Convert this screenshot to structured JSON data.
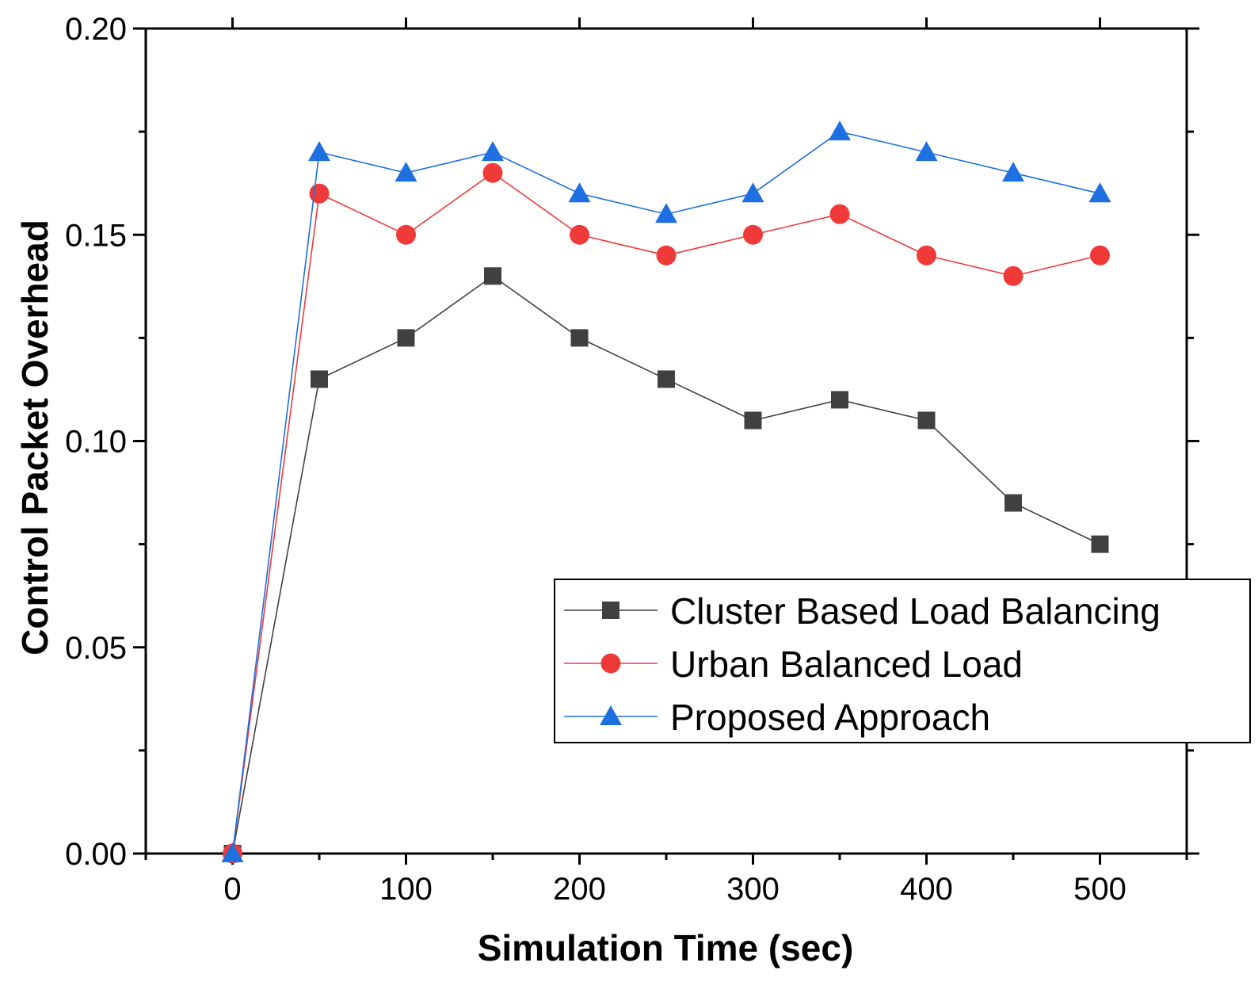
{
  "chart_data": {
    "type": "line",
    "title": "",
    "xlabel": "Simulation Time (sec)",
    "ylabel": "Control Packet Overhead",
    "xlim": [
      -50,
      550
    ],
    "ylim": [
      0.0,
      0.2
    ],
    "x_ticks": [
      0,
      100,
      200,
      300,
      400,
      500
    ],
    "x_tick_labels": [
      "0",
      "100",
      "200",
      "300",
      "400",
      "500"
    ],
    "y_ticks": [
      0.0,
      0.05,
      0.1,
      0.15,
      0.2
    ],
    "y_tick_labels": [
      "0.00",
      "0.05",
      "0.10",
      "0.15",
      "0.20"
    ],
    "grid": false,
    "legend_position": "center-right",
    "x": [
      0,
      50,
      100,
      150,
      200,
      250,
      300,
      350,
      400,
      450,
      500
    ],
    "series": [
      {
        "name": "Cluster Based Load Balancing",
        "color": "#404040",
        "marker": "square",
        "values": [
          0.0,
          0.115,
          0.125,
          0.14,
          0.125,
          0.115,
          0.105,
          0.11,
          0.105,
          0.085,
          0.075
        ]
      },
      {
        "name": "Urban Balanced Load",
        "color": "#f03a3a",
        "marker": "circle",
        "values": [
          0.0,
          0.16,
          0.15,
          0.165,
          0.15,
          0.145,
          0.15,
          0.155,
          0.145,
          0.14,
          0.145
        ]
      },
      {
        "name": "Proposed Approach",
        "color": "#1e6fe0",
        "marker": "triangle",
        "values": [
          0.0,
          0.17,
          0.165,
          0.17,
          0.16,
          0.155,
          0.16,
          0.175,
          0.17,
          0.165,
          0.16
        ]
      }
    ]
  }
}
